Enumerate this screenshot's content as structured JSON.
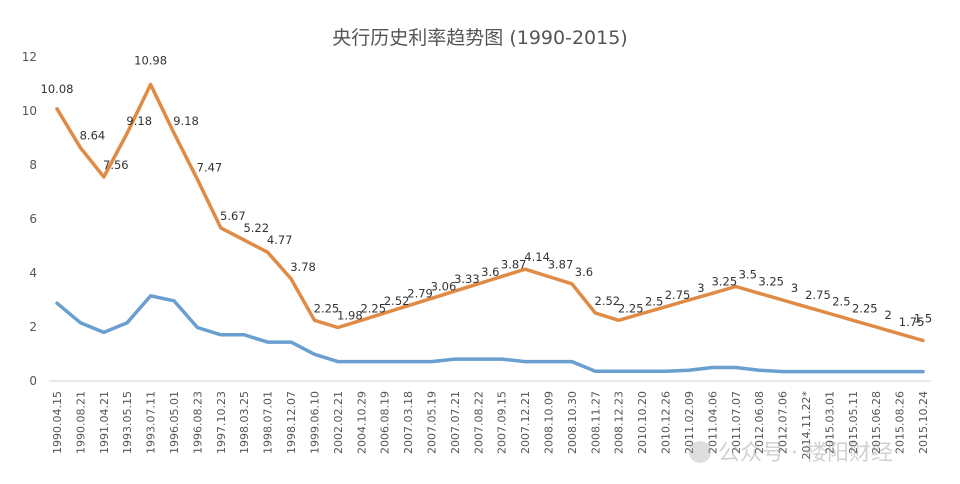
{
  "chart_data": {
    "type": "line",
    "title": "央行历史利率趋势图 (1990-2015)",
    "xlabel": "",
    "ylabel": "",
    "ylim": [
      0,
      12
    ],
    "yticks": [
      0,
      2,
      4,
      6,
      8,
      10,
      12
    ],
    "grid": false,
    "legend": "none",
    "categories": [
      "1990.04.15",
      "1990.08.21",
      "1991.04.21",
      "1993.05.15",
      "1993.07.11",
      "1996.05.01",
      "1996.08.23",
      "1997.10.23",
      "1998.03.25",
      "1998.07.01",
      "1998.12.07",
      "1999.06.10",
      "2002.02.21",
      "2004.10.29",
      "2006.08.19",
      "2007.03.18",
      "2007.05.19",
      "2007.07.21",
      "2007.08.22",
      "2007.09.15",
      "2007.12.21",
      "2008.10.09",
      "2008.10.30",
      "2008.11.27",
      "2008.12.23",
      "2010.10.20",
      "2010.12.26",
      "2011.02.09",
      "2011.04.06",
      "2011.07.07",
      "2012.06.08",
      "2012.07.06",
      "2014.11.22*",
      "2015.03.01",
      "2015.05.11",
      "2015.06.28",
      "2015.08.26",
      "2015.10.24"
    ],
    "series": [
      {
        "color": "#E08B45",
        "values": [
          10.08,
          8.64,
          7.56,
          9.18,
          10.98,
          9.18,
          7.47,
          5.67,
          5.22,
          4.77,
          3.78,
          2.25,
          1.98,
          2.25,
          2.52,
          2.79,
          3.06,
          3.33,
          3.6,
          3.87,
          4.14,
          3.87,
          3.6,
          2.52,
          2.25,
          2.5,
          2.75,
          3,
          3.25,
          3.5,
          3.25,
          3,
          2.75,
          2.5,
          2.25,
          2,
          1.75,
          1.5
        ],
        "labels": [
          "10.08",
          "8.64",
          "7.56",
          "9.18",
          "10.98",
          "9.18",
          "7.47",
          "5.67",
          "5.22",
          "4.77",
          "3.78",
          "2.25",
          "1.98",
          "2.25",
          "2.52",
          "2.79",
          "3.06",
          "3.33",
          "3.6",
          "3.87",
          "4.14",
          "3.87",
          "3.6",
          "2.52",
          "2.25",
          "2.5",
          "2.75",
          "3",
          "3.25",
          "3.5",
          "3.25",
          "3",
          "2.75",
          "2.5",
          "2.25",
          "2",
          "1.75",
          "1.5"
        ]
      },
      {
        "color": "#6A9FD0",
        "values": [
          2.88,
          2.16,
          1.8,
          2.16,
          3.15,
          2.97,
          1.98,
          1.71,
          1.71,
          1.44,
          1.44,
          0.99,
          0.72,
          0.72,
          0.72,
          0.72,
          0.72,
          0.81,
          0.81,
          0.81,
          0.72,
          0.72,
          0.72,
          0.36,
          0.36,
          0.36,
          0.36,
          0.4,
          0.5,
          0.5,
          0.4,
          0.35,
          0.35,
          0.35,
          0.35,
          0.35,
          0.35,
          0.35
        ]
      }
    ]
  },
  "watermark": {
    "icon": "wechat-icon",
    "text": "公众号 · 楼阳财经"
  }
}
